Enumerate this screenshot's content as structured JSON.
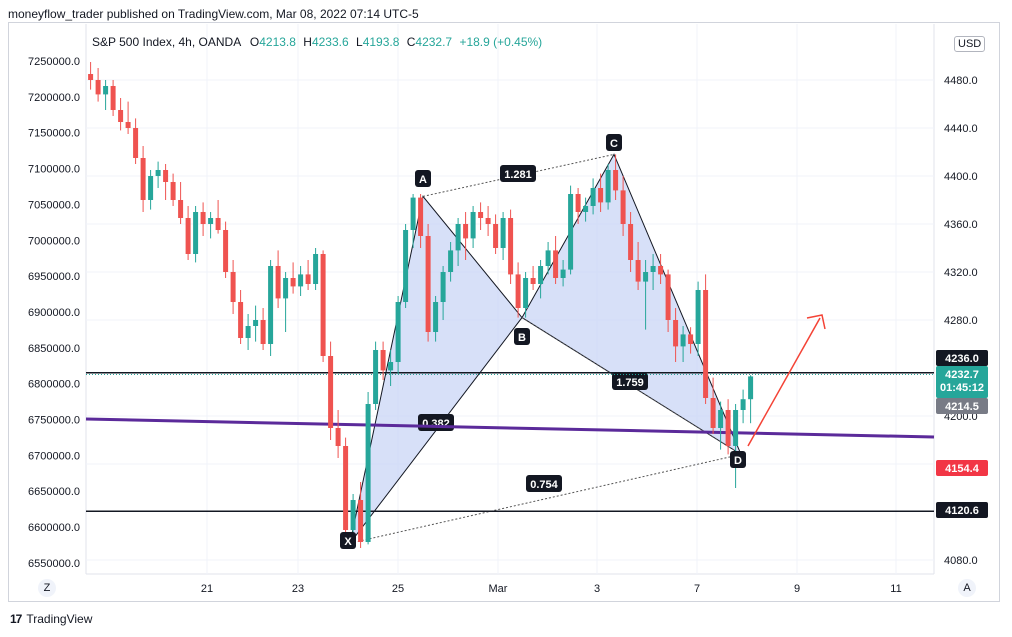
{
  "header": {
    "text": "moneyflow_trader published on TradingView.com, Mar 08, 2022 07:14 UTC-5"
  },
  "legend": {
    "symbol": "S&P 500 Index, 4h, OANDA",
    "open_label": "O",
    "open": "4213.8",
    "high_label": "H",
    "high": "4233.6",
    "low_label": "L",
    "low": "4193.8",
    "close_label": "C",
    "close": "4232.7",
    "change": "+18.9 (+0.45%)"
  },
  "currency": "USD",
  "footer": {
    "logo": "17",
    "brand": "TradingView"
  },
  "corner_left": "Z",
  "corner_right": "A",
  "colors": {
    "up": "#26a69a",
    "down": "#ef5350",
    "pattern_fill": "#c6d3f5",
    "trend": "#5b2a9a",
    "arrow": "#f44336"
  },
  "chart_data": {
    "type": "candlestick",
    "right_axis": {
      "ticks": [
        "4480.0",
        "4440.0",
        "4400.0",
        "4360.0",
        "4320.0",
        "4280.0",
        "4200.0",
        "4160.0",
        "4080.0"
      ],
      "range": [
        4064,
        4520
      ]
    },
    "left_axis": {
      "ticks": [
        "7250000.0",
        "7200000.0",
        "7150000.0",
        "7100000.0",
        "7050000.0",
        "7000000.0",
        "6950000.0",
        "6900000.0",
        "6850000.0",
        "6800000.0",
        "6750000.0",
        "6700000.0",
        "6650000.0",
        "6600000.0",
        "6550000.0"
      ]
    },
    "x_ticks": [
      "21",
      "23",
      "25",
      "Mar",
      "3",
      "7",
      "9",
      "11"
    ],
    "price_tags": {
      "level_top": "4236.0",
      "current": "4232.7",
      "countdown": "01:45:12",
      "prev": "4214.5",
      "red": "4154.4",
      "level_bottom": "4120.6"
    },
    "pattern": {
      "points": {
        "X": 4094,
        "A": 4383,
        "B": 4282,
        "C": 4418,
        "D": 4168
      },
      "ratios": {
        "XA_XB": "0.382",
        "AB_AC": "1.281",
        "BC_BD": "1.759",
        "XA_XD": "0.754"
      }
    },
    "horizontal_levels": [
      4236.0,
      4120.6
    ],
    "candles": [
      [
        4485,
        4495,
        4472,
        4480
      ],
      [
        4480,
        4490,
        4462,
        4468
      ],
      [
        4468,
        4480,
        4455,
        4475
      ],
      [
        4475,
        4480,
        4450,
        4455
      ],
      [
        4455,
        4465,
        4438,
        4445
      ],
      [
        4445,
        4462,
        4435,
        4440
      ],
      [
        4440,
        4448,
        4410,
        4415
      ],
      [
        4415,
        4425,
        4370,
        4380
      ],
      [
        4380,
        4405,
        4372,
        4400
      ],
      [
        4400,
        4412,
        4390,
        4405
      ],
      [
        4405,
        4410,
        4380,
        4395
      ],
      [
        4395,
        4402,
        4375,
        4380
      ],
      [
        4380,
        4395,
        4360,
        4365
      ],
      [
        4365,
        4375,
        4330,
        4335
      ],
      [
        4335,
        4375,
        4328,
        4370
      ],
      [
        4370,
        4378,
        4350,
        4360
      ],
      [
        4360,
        4370,
        4348,
        4365
      ],
      [
        4365,
        4380,
        4352,
        4355
      ],
      [
        4355,
        4362,
        4315,
        4320
      ],
      [
        4320,
        4330,
        4285,
        4295
      ],
      [
        4295,
        4305,
        4260,
        4265
      ],
      [
        4265,
        4285,
        4255,
        4275
      ],
      [
        4275,
        4292,
        4262,
        4280
      ],
      [
        4280,
        4290,
        4255,
        4260
      ],
      [
        4260,
        4330,
        4250,
        4325
      ],
      [
        4325,
        4338,
        4290,
        4298
      ],
      [
        4298,
        4320,
        4270,
        4315
      ],
      [
        4315,
        4328,
        4302,
        4308
      ],
      [
        4308,
        4325,
        4300,
        4318
      ],
      [
        4318,
        4330,
        4305,
        4310
      ],
      [
        4310,
        4340,
        4305,
        4335
      ],
      [
        4335,
        4338,
        4245,
        4250
      ],
      [
        4250,
        4262,
        4180,
        4190
      ],
      [
        4190,
        4205,
        4165,
        4175
      ],
      [
        4175,
        4182,
        4098,
        4105
      ],
      [
        4105,
        4135,
        4095,
        4130
      ],
      [
        4130,
        4145,
        4090,
        4095
      ],
      [
        4095,
        4220,
        4093,
        4210
      ],
      [
        4210,
        4262,
        4205,
        4255
      ],
      [
        4255,
        4262,
        4230,
        4238
      ],
      [
        4238,
        4255,
        4225,
        4245
      ],
      [
        4245,
        4300,
        4235,
        4295
      ],
      [
        4295,
        4360,
        4290,
        4355
      ],
      [
        4355,
        4385,
        4340,
        4382
      ],
      [
        4382,
        4385,
        4340,
        4350
      ],
      [
        4350,
        4360,
        4262,
        4270
      ],
      [
        4270,
        4300,
        4262,
        4295
      ],
      [
        4295,
        4325,
        4280,
        4320
      ],
      [
        4320,
        4345,
        4312,
        4338
      ],
      [
        4338,
        4365,
        4325,
        4360
      ],
      [
        4360,
        4370,
        4330,
        4348
      ],
      [
        4348,
        4375,
        4340,
        4370
      ],
      [
        4370,
        4378,
        4355,
        4365
      ],
      [
        4365,
        4375,
        4350,
        4360
      ],
      [
        4360,
        4368,
        4335,
        4340
      ],
      [
        4340,
        4370,
        4330,
        4365
      ],
      [
        4365,
        4372,
        4310,
        4318
      ],
      [
        4318,
        4328,
        4282,
        4290
      ],
      [
        4290,
        4320,
        4282,
        4315
      ],
      [
        4315,
        4325,
        4305,
        4310
      ],
      [
        4310,
        4330,
        4298,
        4325
      ],
      [
        4325,
        4345,
        4318,
        4338
      ],
      [
        4338,
        4350,
        4310,
        4315
      ],
      [
        4315,
        4330,
        4308,
        4322
      ],
      [
        4322,
        4392,
        4318,
        4385
      ],
      [
        4385,
        4390,
        4360,
        4370
      ],
      [
        4370,
        4382,
        4362,
        4375
      ],
      [
        4375,
        4398,
        4368,
        4390
      ],
      [
        4390,
        4402,
        4370,
        4378
      ],
      [
        4378,
        4410,
        4372,
        4405
      ],
      [
        4405,
        4418,
        4380,
        4388
      ],
      [
        4388,
        4400,
        4350,
        4360
      ],
      [
        4360,
        4370,
        4320,
        4330
      ],
      [
        4330,
        4345,
        4305,
        4312
      ],
      [
        4312,
        4330,
        4272,
        4320
      ],
      [
        4320,
        4335,
        4305,
        4325
      ],
      [
        4325,
        4335,
        4310,
        4318
      ],
      [
        4318,
        4322,
        4270,
        4280
      ],
      [
        4280,
        4290,
        4245,
        4258
      ],
      [
        4258,
        4275,
        4245,
        4268
      ],
      [
        4268,
        4274,
        4252,
        4260
      ],
      [
        4260,
        4312,
        4250,
        4305
      ],
      [
        4305,
        4318,
        4210,
        4215
      ],
      [
        4215,
        4232,
        4185,
        4190
      ],
      [
        4190,
        4212,
        4172,
        4205
      ],
      [
        4205,
        4214,
        4168,
        4175
      ],
      [
        4175,
        4210,
        4140,
        4205
      ],
      [
        4205,
        4222,
        4194,
        4214
      ],
      [
        4214,
        4234,
        4194,
        4233
      ]
    ]
  }
}
